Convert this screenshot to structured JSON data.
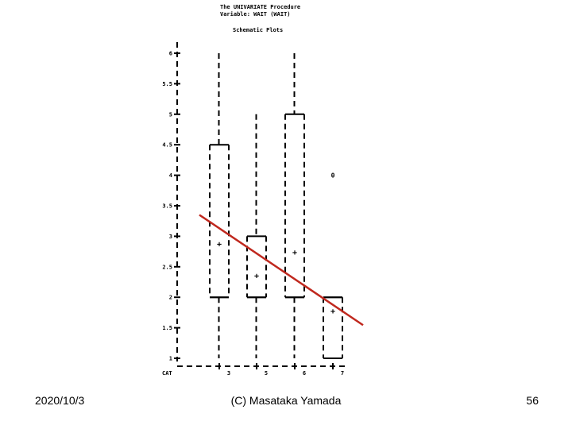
{
  "header": {
    "line1": "The UNIVARIATE Procedure",
    "line2": "Variable:  WAIT  (WAIT)",
    "subtitle": "Schematic Plots"
  },
  "chart_data": {
    "type": "boxplot",
    "ylim": [
      1,
      6
    ],
    "yticks": [
      "6",
      "5.5",
      "5",
      "4.5",
      "4",
      "3.5",
      "3",
      "2.5",
      "2",
      "1.5",
      "1"
    ],
    "ytick_values": [
      6,
      5.5,
      5,
      4.5,
      4,
      3.5,
      3,
      2.5,
      2,
      1.5,
      1
    ],
    "xlabel": "CAT",
    "categories": [
      "3",
      "5",
      "6",
      "7"
    ],
    "boxes": [
      {
        "category": "3",
        "min": 1,
        "q1": 2,
        "median": 2,
        "q3": 4.5,
        "max": 6,
        "mean": 2.87
      },
      {
        "category": "5",
        "min": 1,
        "q1": 2,
        "median": 2,
        "q3": 3,
        "max": 5,
        "mean": 2.35
      },
      {
        "category": "6",
        "min": 1,
        "q1": 2,
        "median": 2,
        "q3": 5,
        "max": 6,
        "mean": 2.73
      },
      {
        "category": "7",
        "min": 1,
        "q1": 1,
        "median": 2,
        "q3": 2,
        "max": 2,
        "mean": 1.77,
        "outliers": [
          4
        ]
      }
    ],
    "mean_symbol": "+",
    "outlier_symbol": "0",
    "trend_line": {
      "color": "#c0281e",
      "start": {
        "category": "3",
        "value": 3.35
      },
      "end": {
        "category": "7",
        "value": 1.7
      }
    }
  },
  "footer": {
    "date": "2020/10/3",
    "center": "(C) Masataka Yamada",
    "page": "56"
  }
}
